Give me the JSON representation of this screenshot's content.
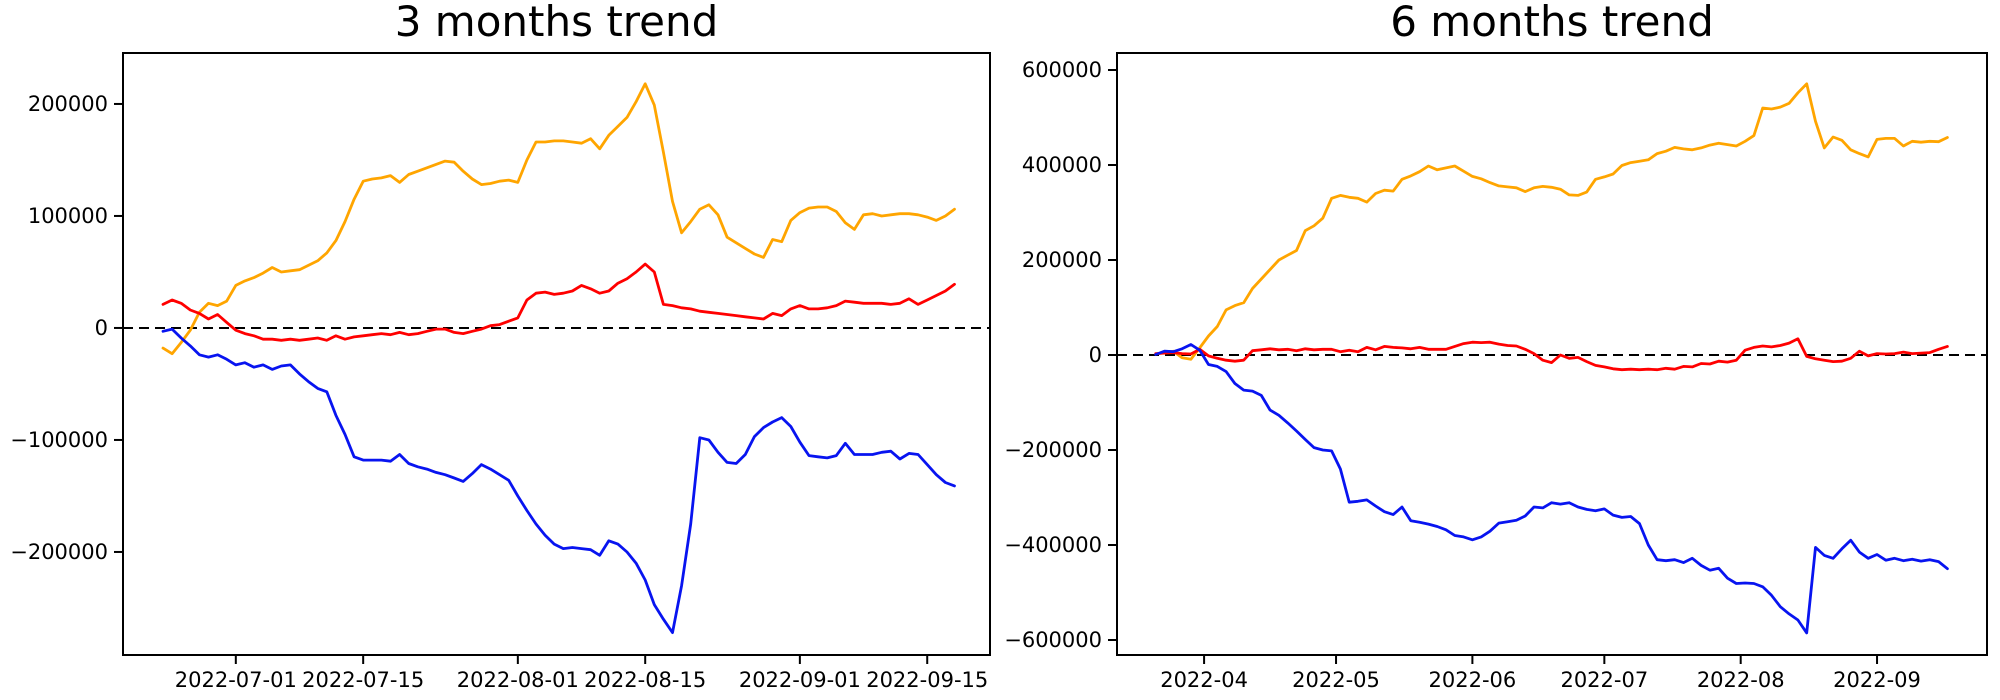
{
  "figure": {
    "background": "#ffffff",
    "border_color": "#000000",
    "zero_line_color": "#000000"
  },
  "chart_data": [
    {
      "type": "line",
      "title": "3 months trend",
      "xlabel": "",
      "ylabel": "",
      "grid": false,
      "legend": "none",
      "zero_line_dashed": true,
      "x_epoch": "2022-06-23",
      "x_unit": "days",
      "xlim": [
        -4.4,
        90.9
      ],
      "ylim": [
        -292000,
        245500
      ],
      "x_ticks": [
        {
          "t": 8,
          "label": "2022-07-01"
        },
        {
          "t": 22,
          "label": "2022-07-15"
        },
        {
          "t": 39,
          "label": "2022-08-01"
        },
        {
          "t": 53,
          "label": "2022-08-15"
        },
        {
          "t": 70,
          "label": "2022-09-01"
        },
        {
          "t": 84,
          "label": "2022-09-15"
        }
      ],
      "y_ticks": [
        {
          "v": 200000,
          "label": "200000"
        },
        {
          "v": 100000,
          "label": "100000"
        },
        {
          "v": 0,
          "label": "0"
        },
        {
          "v": -100000,
          "label": "−100000"
        },
        {
          "v": -200000,
          "label": "−200000"
        }
      ],
      "series": [
        {
          "name": "orange",
          "color": "#ffa500",
          "x0": 0,
          "dx": 1,
          "y": [
            -18000,
            -23000,
            -13000,
            -2000,
            14000,
            22000,
            20000,
            24000,
            38000,
            42000,
            45000,
            49000,
            54000,
            50000,
            51000,
            52000,
            56000,
            60000,
            67000,
            78000,
            95000,
            115000,
            131000,
            133000,
            134000,
            136000,
            130000,
            137000,
            140000,
            143000,
            146000,
            149000,
            148000,
            140000,
            133000,
            128000,
            129000,
            131000,
            132000,
            130000,
            150000,
            166000,
            166000,
            167000,
            167000,
            166000,
            165000,
            169000,
            160000,
            172000,
            180000,
            188000,
            202000,
            218000,
            199000,
            157000,
            113000,
            85000,
            95000,
            106000,
            110000,
            101000,
            81000,
            76000,
            71000,
            66000,
            63000,
            79000,
            77000,
            96000,
            103000,
            107000,
            108000,
            108000,
            104000,
            94000,
            88000,
            101000,
            102000,
            100000,
            101000,
            102000,
            102000,
            101000,
            99000,
            96000,
            100000,
            106000
          ]
        },
        {
          "name": "red",
          "color": "#ff0000",
          "x0": 0,
          "dx": 1,
          "y": [
            21000,
            25000,
            22000,
            16000,
            13000,
            8000,
            12000,
            5000,
            -2000,
            -5000,
            -7000,
            -10000,
            -10000,
            -11000,
            -10000,
            -11000,
            -10000,
            -9000,
            -11000,
            -7000,
            -10000,
            -8000,
            -7000,
            -6000,
            -5000,
            -6000,
            -4000,
            -6000,
            -5000,
            -3000,
            -1000,
            -1000,
            -4000,
            -5000,
            -3000,
            -1000,
            2000,
            3000,
            6000,
            9000,
            25000,
            31000,
            32000,
            30000,
            31000,
            33000,
            38000,
            35000,
            31000,
            33000,
            40000,
            44000,
            50000,
            57000,
            50000,
            21000,
            20000,
            18000,
            17000,
            15000,
            14000,
            13000,
            12000,
            11000,
            10000,
            9000,
            8000,
            13000,
            11000,
            17000,
            20000,
            17000,
            17000,
            18000,
            20000,
            24000,
            23000,
            22000,
            22000,
            22000,
            21000,
            22000,
            26000,
            21000,
            25000,
            29000,
            33000,
            39000
          ]
        },
        {
          "name": "blue",
          "color": "#0814f0",
          "x0": 0,
          "dx": 1,
          "y": [
            -3000,
            -1000,
            -9000,
            -16000,
            -24000,
            -26000,
            -24000,
            -28000,
            -33000,
            -31000,
            -35000,
            -33000,
            -37000,
            -34000,
            -33000,
            -41000,
            -48000,
            -54000,
            -57000,
            -78000,
            -95000,
            -115000,
            -118000,
            -118000,
            -118000,
            -119000,
            -113000,
            -121000,
            -124000,
            -126000,
            -129000,
            -131000,
            -134000,
            -137000,
            -130000,
            -122000,
            -126000,
            -131000,
            -136000,
            -150000,
            -163000,
            -175000,
            -185000,
            -193000,
            -197000,
            -196000,
            -197000,
            -198000,
            -203000,
            -190000,
            -193000,
            -200000,
            -210000,
            -225000,
            -247000,
            -260000,
            -272000,
            -230000,
            -175000,
            -98000,
            -100000,
            -111000,
            -120000,
            -121000,
            -113000,
            -97000,
            -89000,
            -84000,
            -80000,
            -88000,
            -102000,
            -114000,
            -115000,
            -116000,
            -114000,
            -103000,
            -113000,
            -113000,
            -113000,
            -111000,
            -110000,
            -117000,
            -112000,
            -113000,
            -122000,
            -131000,
            -138000,
            -141000
          ]
        }
      ]
    },
    {
      "type": "line",
      "title": "6 months trend",
      "xlabel": "",
      "ylabel": "",
      "grid": false,
      "legend": "none",
      "zero_line_dashed": true,
      "x_epoch": "2022-03-21",
      "x_unit": "days",
      "xlim": [
        -8.8,
        189
      ],
      "ylim": [
        -631600,
        635800
      ],
      "x_ticks": [
        {
          "t": 11,
          "label": "2022-04"
        },
        {
          "t": 41,
          "label": "2022-05"
        },
        {
          "t": 72,
          "label": "2022-06"
        },
        {
          "t": 102,
          "label": "2022-07"
        },
        {
          "t": 133,
          "label": "2022-08"
        },
        {
          "t": 164,
          "label": "2022-09"
        }
      ],
      "y_ticks": [
        {
          "v": 600000,
          "label": "600000"
        },
        {
          "v": 400000,
          "label": "400000"
        },
        {
          "v": 200000,
          "label": "200000"
        },
        {
          "v": 0,
          "label": "0"
        },
        {
          "v": -200000,
          "label": "−200000"
        },
        {
          "v": -400000,
          "label": "−400000"
        },
        {
          "v": -600000,
          "label": "−600000"
        }
      ],
      "series": [
        {
          "name": "orange",
          "color": "#ffa500",
          "x0": 0,
          "dx": 2,
          "y": [
            2000,
            5000,
            8000,
            -6000,
            -9000,
            15000,
            40000,
            60000,
            95000,
            104000,
            110000,
            140000,
            160000,
            180000,
            200000,
            210000,
            220000,
            262000,
            272000,
            288000,
            330000,
            336000,
            332000,
            330000,
            322000,
            340000,
            347000,
            345000,
            370000,
            377000,
            386000,
            398000,
            390000,
            394000,
            398000,
            387000,
            376000,
            371000,
            363000,
            356000,
            354000,
            352000,
            344000,
            352000,
            355000,
            353000,
            349000,
            337000,
            336000,
            343000,
            370000,
            375000,
            381000,
            399000,
            405000,
            408000,
            411000,
            424000,
            429000,
            437000,
            434000,
            432000,
            436000,
            442000,
            446000,
            443000,
            440000,
            450000,
            462000,
            520000,
            518000,
            522000,
            530000,
            552000,
            571000,
            492000,
            436000,
            459000,
            452000,
            432000,
            424000,
            417000,
            454000,
            456000,
            456000,
            440000,
            450000,
            448000,
            450000,
            449000,
            458000
          ]
        },
        {
          "name": "red",
          "color": "#ff0000",
          "x0": 0,
          "dx": 2,
          "y": [
            3000,
            4000,
            5000,
            3000,
            2000,
            12000,
            -2000,
            -7000,
            -11000,
            -13000,
            -11000,
            9000,
            11000,
            13000,
            11000,
            12000,
            9000,
            13000,
            11000,
            12000,
            12000,
            7000,
            10000,
            7000,
            16000,
            11000,
            18000,
            16000,
            15000,
            13000,
            16000,
            12000,
            12000,
            12000,
            18000,
            24000,
            27000,
            26000,
            27000,
            23000,
            20000,
            19000,
            12000,
            3000,
            -11000,
            -16000,
            0,
            -7000,
            -5000,
            -14000,
            -22000,
            -25000,
            -29000,
            -31000,
            -30000,
            -31000,
            -30000,
            -31000,
            -28000,
            -30000,
            -24000,
            -25000,
            -18000,
            -19000,
            -13000,
            -15000,
            -11000,
            10000,
            16000,
            19000,
            17000,
            20000,
            25000,
            34000,
            -3000,
            -8000,
            -11000,
            -14000,
            -13000,
            -7000,
            8000,
            -2000,
            3000,
            2000,
            3000,
            6000,
            3000,
            4000,
            5000,
            12000,
            18000
          ]
        },
        {
          "name": "blue",
          "color": "#0814f0",
          "x0": 0,
          "dx": 2,
          "y": [
            1000,
            8000,
            7000,
            13000,
            22000,
            10000,
            -20000,
            -24000,
            -35000,
            -60000,
            -74000,
            -76000,
            -85000,
            -116000,
            -127000,
            -143000,
            -160000,
            -178000,
            -195000,
            -200000,
            -202000,
            -240000,
            -310000,
            -308000,
            -305000,
            -318000,
            -330000,
            -336000,
            -320000,
            -349000,
            -352000,
            -356000,
            -361000,
            -368000,
            -380000,
            -383000,
            -389000,
            -383000,
            -371000,
            -354000,
            -351000,
            -348000,
            -339000,
            -320000,
            -322000,
            -311000,
            -314000,
            -311000,
            -320000,
            -325000,
            -328000,
            -324000,
            -337000,
            -342000,
            -340000,
            -355000,
            -400000,
            -431000,
            -433000,
            -431000,
            -437000,
            -428000,
            -443000,
            -453000,
            -449000,
            -470000,
            -481000,
            -480000,
            -481000,
            -488000,
            -506000,
            -530000,
            -545000,
            -558000,
            -585000,
            -405000,
            -422000,
            -428000,
            -408000,
            -390000,
            -415000,
            -428000,
            -420000,
            -432000,
            -428000,
            -433000,
            -430000,
            -434000,
            -431000,
            -435000,
            -450000
          ]
        }
      ]
    }
  ]
}
